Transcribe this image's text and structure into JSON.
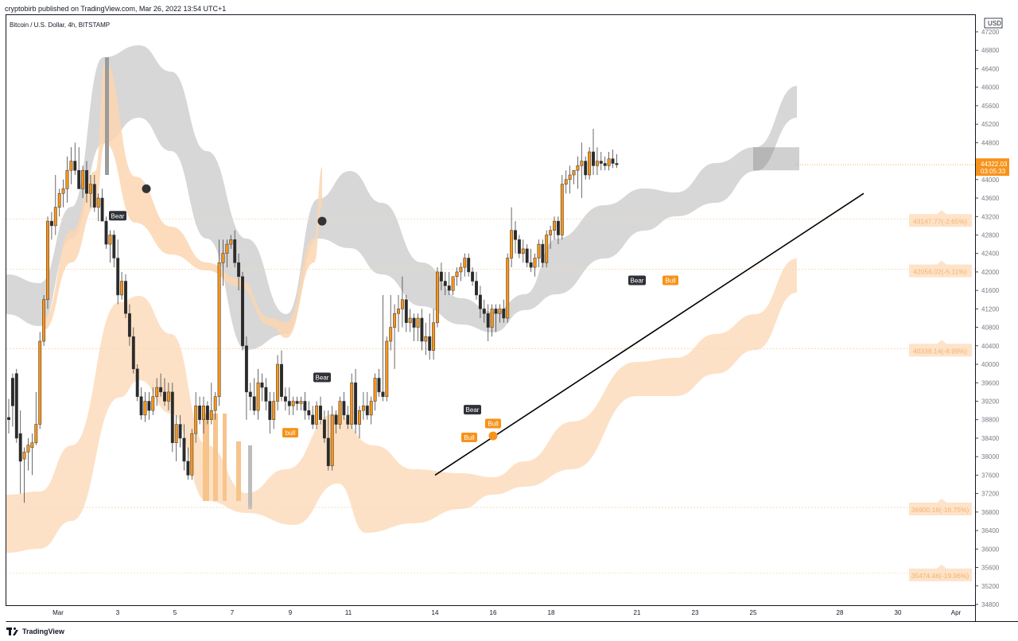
{
  "header": {
    "published": "cryptobirb published on TradingView.com, Mar 26, 2022 13:54 UTC+1",
    "symbol": "Bitcoin / U.S. Dollar, 4h, BITSTAMP"
  },
  "footer": {
    "brand": "TradingView"
  },
  "chart_data": {
    "type": "candlestick",
    "title": "Bitcoin / U.S. Dollar, 4h, BITSTAMP",
    "currency": "USD",
    "ylim": [
      34400,
      47400
    ],
    "y_ticks": [
      47200,
      46800,
      46400,
      46000,
      45600,
      45200,
      44800,
      44400,
      44000,
      43600,
      43200,
      42800,
      42400,
      42000,
      41600,
      41200,
      40800,
      40400,
      40000,
      39600,
      39200,
      38800,
      38400,
      38000,
      37600,
      37200,
      36800,
      36400,
      36000,
      35600,
      35200,
      34800
    ],
    "x_ticks": [
      "Mar",
      "3",
      "5",
      "7",
      "9",
      "11",
      "14",
      "16",
      "18",
      "21",
      "23",
      "25",
      "28",
      "30",
      "Apr"
    ],
    "last_price": {
      "value": "44322.03",
      "countdown": "03:05:33"
    },
    "levels": [
      {
        "value": 43147.77,
        "label": "43147.77(-2.65%)"
      },
      {
        "value": 42056.02,
        "label": "42056.02(-5.11%)"
      },
      {
        "value": 40338.14,
        "label": "40338.14(-8.99%)"
      },
      {
        "value": 36900.16,
        "label": "36900.16(-16.75%)"
      },
      {
        "value": 35474.46,
        "label": "35474.46(-19.96%)"
      }
    ],
    "signals": [
      {
        "label": "Bear",
        "date": "Mar 3",
        "price": 43200
      },
      {
        "label": "bull",
        "date": "Mar 9",
        "price": 38500
      },
      {
        "label": "Bear",
        "date": "Mar 10",
        "price": 39700
      },
      {
        "label": "Bull",
        "date": "Mar 15",
        "price": 38400
      },
      {
        "label": "Bear",
        "date": "Mar 15",
        "price": 39000
      },
      {
        "label": "Bull",
        "date": "Mar 16",
        "price": 38700
      },
      {
        "label": "Bear",
        "date": "Mar 21",
        "price": 41800
      },
      {
        "label": "Bull",
        "date": "Mar 22",
        "price": 41800
      }
    ],
    "dots": [
      {
        "date": "Mar 4",
        "price": 43800,
        "color": "dark"
      },
      {
        "date": "Mar 10",
        "price": 43100,
        "color": "dark"
      },
      {
        "date": "Mar 16",
        "price": 38450,
        "color": "orange"
      }
    ],
    "trendline": {
      "start": {
        "date": "Mar 14",
        "price": 37600
      },
      "end": {
        "date": "Mar 28",
        "price": 43700
      }
    },
    "candles": [
      [
        38850,
        39250,
        38500,
        38800
      ],
      [
        39700,
        39800,
        38650,
        39100
      ],
      [
        39800,
        39900,
        38300,
        38400
      ],
      [
        38500,
        39000,
        37200,
        37900
      ],
      [
        37950,
        38200,
        37000,
        38100
      ],
      [
        38100,
        38400,
        37700,
        38250
      ],
      [
        38200,
        38500,
        37600,
        38300
      ],
      [
        38300,
        39400,
        38250,
        38700
      ],
      [
        38700,
        40700,
        38600,
        40500
      ],
      [
        40500,
        41500,
        40400,
        41400
      ],
      [
        41400,
        43200,
        41200,
        43100
      ],
      [
        43100,
        43300,
        42700,
        43000
      ],
      [
        43000,
        44100,
        42800,
        43400
      ],
      [
        43400,
        43800,
        43200,
        43700
      ],
      [
        43700,
        44000,
        43400,
        43800
      ],
      [
        43800,
        44500,
        43500,
        44200
      ],
      [
        44200,
        44700,
        43900,
        44400
      ],
      [
        44400,
        44800,
        44100,
        44200
      ],
      [
        44200,
        44700,
        43800,
        43800
      ],
      [
        43800,
        44300,
        43600,
        44200
      ],
      [
        44200,
        44400,
        43500,
        43700
      ],
      [
        43700,
        44100,
        43400,
        43900
      ],
      [
        43900,
        44100,
        43300,
        43400
      ],
      [
        43400,
        43700,
        43100,
        43600
      ],
      [
        43600,
        43800,
        43100,
        43100
      ],
      [
        43100,
        43200,
        42500,
        42600
      ],
      [
        42600,
        42900,
        42200,
        42800
      ],
      [
        42800,
        42900,
        42100,
        42300
      ],
      [
        42300,
        42700,
        41300,
        41500
      ],
      [
        41500,
        42000,
        41400,
        41800
      ],
      [
        41800,
        41950,
        41000,
        41100
      ],
      [
        41100,
        41300,
        40400,
        40600
      ],
      [
        40600,
        40800,
        39800,
        39900
      ],
      [
        39900,
        40000,
        39200,
        39300
      ],
      [
        39300,
        39500,
        38800,
        38900
      ],
      [
        38900,
        39400,
        38750,
        39200
      ],
      [
        39200,
        39400,
        38800,
        39000
      ],
      [
        39000,
        39500,
        38900,
        39300
      ],
      [
        39300,
        39700,
        39100,
        39500
      ],
      [
        39500,
        39800,
        39300,
        39400
      ],
      [
        39400,
        39700,
        39100,
        39200
      ],
      [
        39200,
        39600,
        39000,
        39400
      ],
      [
        39400,
        39600,
        38100,
        38300
      ],
      [
        38300,
        38900,
        37900,
        38700
      ],
      [
        38700,
        38900,
        38200,
        38400
      ],
      [
        38400,
        38700,
        37700,
        37900
      ],
      [
        37900,
        38200,
        37500,
        37600
      ],
      [
        37600,
        38600,
        37500,
        38500
      ],
      [
        38500,
        39400,
        38300,
        39100
      ],
      [
        39100,
        39300,
        38700,
        38800
      ],
      [
        38800,
        39300,
        38500,
        39100
      ],
      [
        39100,
        39200,
        38700,
        38800
      ],
      [
        38800,
        39600,
        38700,
        39000
      ],
      [
        39000,
        39400,
        38800,
        39300
      ],
      [
        39300,
        42700,
        39100,
        42200
      ],
      [
        42200,
        42700,
        41700,
        42400
      ],
      [
        42400,
        42700,
        42100,
        42600
      ],
      [
        42600,
        42800,
        42500,
        42700
      ],
      [
        42700,
        42900,
        42100,
        42200
      ],
      [
        42200,
        42400,
        41600,
        41900
      ],
      [
        41900,
        42000,
        40300,
        40400
      ],
      [
        40400,
        40600,
        38800,
        39400
      ],
      [
        39400,
        39600,
        39000,
        39300
      ],
      [
        39300,
        39700,
        38900,
        39000
      ],
      [
        39000,
        39900,
        38800,
        39600
      ],
      [
        39600,
        39800,
        39200,
        39500
      ],
      [
        39500,
        39700,
        39000,
        39200
      ],
      [
        39200,
        39400,
        38500,
        38800
      ],
      [
        38800,
        39400,
        38600,
        39200
      ],
      [
        39200,
        40200,
        39000,
        40000
      ],
      [
        40000,
        40300,
        39200,
        39300
      ],
      [
        39300,
        39500,
        39000,
        39200
      ],
      [
        39200,
        39500,
        38900,
        39100
      ],
      [
        39100,
        39300,
        38900,
        39200
      ],
      [
        39200,
        39300,
        39000,
        39150
      ],
      [
        39150,
        39300,
        39000,
        39200
      ],
      [
        39200,
        39400,
        38800,
        39000
      ],
      [
        39000,
        39200,
        38800,
        38900
      ],
      [
        38900,
        39100,
        38600,
        38700
      ],
      [
        38700,
        39200,
        38600,
        39100
      ],
      [
        39100,
        39300,
        38700,
        38800
      ],
      [
        38800,
        39000,
        38300,
        38400
      ],
      [
        38400,
        39000,
        37700,
        37800
      ],
      [
        37800,
        39100,
        37700,
        38900
      ],
      [
        38900,
        39000,
        38500,
        38700
      ],
      [
        38700,
        39300,
        38600,
        39200
      ],
      [
        39200,
        39400,
        38800,
        38900
      ],
      [
        38900,
        39100,
        38600,
        38700
      ],
      [
        38700,
        39800,
        38600,
        39600
      ],
      [
        39600,
        39900,
        38500,
        38700
      ],
      [
        38700,
        39100,
        38400,
        39000
      ],
      [
        39000,
        39400,
        38800,
        39100
      ],
      [
        39100,
        39400,
        38800,
        38900
      ],
      [
        38900,
        39300,
        38700,
        39200
      ],
      [
        39200,
        39800,
        39000,
        39700
      ],
      [
        39700,
        39900,
        39300,
        39400
      ],
      [
        39400,
        41500,
        39200,
        39300
      ],
      [
        39300,
        40600,
        39200,
        40500
      ],
      [
        40500,
        41500,
        40300,
        40800
      ],
      [
        40800,
        41300,
        39900,
        41100
      ],
      [
        41100,
        41500,
        40700,
        41200
      ],
      [
        41200,
        41900,
        40800,
        41400
      ],
      [
        41400,
        41500,
        40700,
        40900
      ],
      [
        40900,
        41200,
        40700,
        41000
      ],
      [
        41000,
        41100,
        40500,
        40800
      ],
      [
        40800,
        41100,
        40500,
        41000
      ],
      [
        41000,
        41200,
        40300,
        40500
      ],
      [
        40500,
        40900,
        40200,
        40600
      ],
      [
        40600,
        41100,
        40100,
        40300
      ],
      [
        40300,
        41200,
        40100,
        40900
      ],
      [
        40900,
        42100,
        40800,
        42000
      ],
      [
        42000,
        42200,
        41600,
        41800
      ],
      [
        41800,
        42000,
        41500,
        41700
      ],
      [
        41700,
        42000,
        41500,
        41600
      ],
      [
        41600,
        41900,
        41500,
        41900
      ],
      [
        41900,
        42100,
        41700,
        42000
      ],
      [
        42000,
        42200,
        41800,
        42100
      ],
      [
        42100,
        42400,
        41900,
        42300
      ],
      [
        42300,
        42400,
        41900,
        42000
      ],
      [
        42000,
        42100,
        41700,
        41800
      ],
      [
        41800,
        42000,
        41400,
        41500
      ],
      [
        41500,
        41700,
        41000,
        41200
      ],
      [
        41200,
        41400,
        40900,
        41100
      ],
      [
        41100,
        41300,
        40500,
        40800
      ],
      [
        40800,
        41300,
        40600,
        41200
      ],
      [
        41200,
        41300,
        40700,
        41100
      ],
      [
        41100,
        41300,
        40900,
        41200
      ],
      [
        41200,
        41400,
        40900,
        41000
      ],
      [
        41000,
        42400,
        40900,
        42300
      ],
      [
        42300,
        43400,
        42100,
        42900
      ],
      [
        42900,
        43100,
        42400,
        42700
      ],
      [
        42700,
        42800,
        42300,
        42400
      ],
      [
        42400,
        42700,
        42200,
        42500
      ],
      [
        42500,
        42600,
        42100,
        42200
      ],
      [
        42200,
        42500,
        42000,
        42100
      ],
      [
        42100,
        42400,
        41900,
        42300
      ],
      [
        42300,
        42700,
        42100,
        42600
      ],
      [
        42600,
        42700,
        42100,
        42200
      ],
      [
        42200,
        42900,
        42100,
        42800
      ],
      [
        42800,
        43000,
        42500,
        42900
      ],
      [
        42900,
        43200,
        42700,
        43100
      ],
      [
        43100,
        43200,
        42600,
        42800
      ],
      [
        42800,
        44100,
        42700,
        43900
      ],
      [
        43900,
        44200,
        43700,
        44000
      ],
      [
        44000,
        44300,
        43700,
        44100
      ],
      [
        44100,
        44200,
        43900,
        44200
      ],
      [
        44200,
        44500,
        43800,
        44300
      ],
      [
        44300,
        44800,
        43600,
        44400
      ],
      [
        44400,
        44500,
        44000,
        44100
      ],
      [
        44100,
        44700,
        44000,
        44600
      ],
      [
        44600,
        45100,
        44100,
        44300
      ],
      [
        44300,
        44700,
        44100,
        44400
      ],
      [
        44400,
        44600,
        44200,
        44350
      ],
      [
        44350,
        44500,
        44200,
        44300
      ],
      [
        44300,
        44600,
        44200,
        44450
      ],
      [
        44450,
        44650,
        44250,
        44350
      ],
      [
        44350,
        44550,
        44250,
        44322
      ]
    ]
  }
}
